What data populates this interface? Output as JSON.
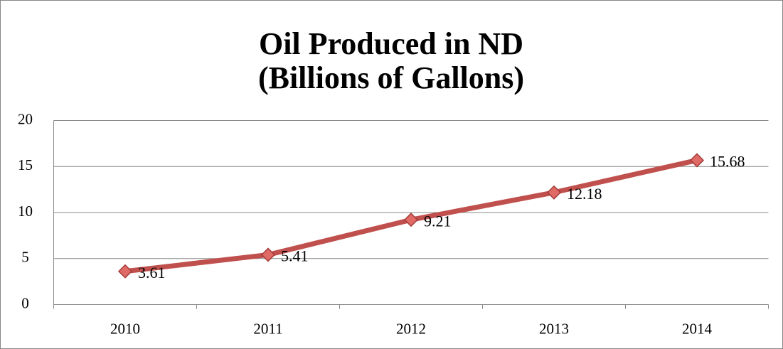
{
  "chart_data": {
    "type": "line",
    "title": [
      "Oil Produced in ND",
      "(Billions of Gallons)"
    ],
    "categories": [
      "2010",
      "2011",
      "2012",
      "2013",
      "2014"
    ],
    "series": [
      {
        "name": "Oil Produced",
        "color": "#c0504d",
        "values": [
          3.61,
          5.41,
          9.21,
          12.18,
          15.68
        ]
      }
    ],
    "ylim": [
      0,
      20
    ],
    "yticks": [
      0,
      5,
      10,
      15,
      20
    ],
    "grid": true,
    "data_labels": true
  }
}
